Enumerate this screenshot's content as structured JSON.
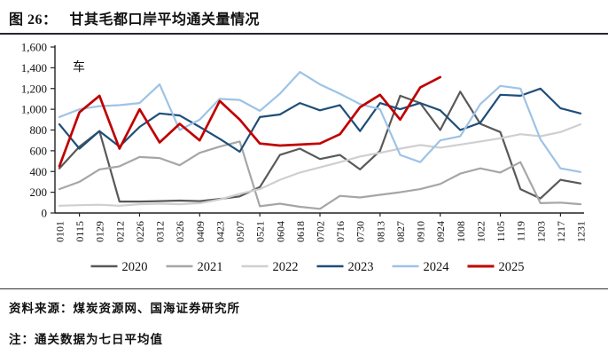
{
  "figure": {
    "label": "图 26：",
    "title": "甘其毛都口岸平均通关量情况"
  },
  "chart_data": {
    "type": "line",
    "title": "甘其毛都口岸平均通关量情况",
    "unit_label": "车",
    "xlabel": "",
    "ylabel": "",
    "ylim": [
      0,
      1600
    ],
    "y_ticks": [
      0,
      200,
      400,
      600,
      800,
      1000,
      1200,
      1400,
      1600
    ],
    "grid": false,
    "legend_position": "bottom",
    "x_tick_labels": [
      "0101",
      "0115",
      "0129",
      "0212",
      "0226",
      "0312",
      "0326",
      "0409",
      "0423",
      "0507",
      "0521",
      "0604",
      "0618",
      "0702",
      "0716",
      "0730",
      "0813",
      "0827",
      "0910",
      "0924",
      "1008",
      "1022",
      "1105",
      "1119",
      "1203",
      "1217",
      "1231"
    ],
    "series": [
      {
        "name": "2020",
        "color": "#595959",
        "width": 2.2,
        "values": [
          430,
          640,
          790,
          110,
          110,
          115,
          120,
          115,
          135,
          160,
          250,
          560,
          620,
          520,
          560,
          420,
          600,
          1130,
          1060,
          800,
          1170,
          860,
          780,
          230,
          140,
          320,
          285
        ]
      },
      {
        "name": "2021",
        "color": "#a6a6a6",
        "width": 2.2,
        "values": [
          230,
          300,
          420,
          450,
          540,
          530,
          460,
          580,
          640,
          690,
          65,
          90,
          60,
          40,
          165,
          150,
          175,
          200,
          230,
          280,
          380,
          430,
          390,
          490,
          95,
          100,
          85
        ]
      },
      {
        "name": "2022",
        "color": "#cfcfcf",
        "width": 2.2,
        "values": [
          70,
          75,
          80,
          70,
          85,
          90,
          85,
          95,
          130,
          185,
          230,
          320,
          390,
          440,
          490,
          545,
          580,
          620,
          655,
          630,
          660,
          690,
          720,
          760,
          740,
          780,
          855
        ]
      },
      {
        "name": "2023",
        "color": "#1f4e79",
        "width": 2.2,
        "values": [
          855,
          620,
          790,
          640,
          830,
          960,
          940,
          830,
          715,
          590,
          925,
          950,
          1060,
          990,
          1040,
          790,
          1060,
          1000,
          1060,
          990,
          800,
          870,
          1140,
          1130,
          1200,
          1010,
          960
        ]
      },
      {
        "name": "2024",
        "color": "#9dc3e6",
        "width": 2.2,
        "values": [
          925,
          1000,
          1030,
          1040,
          1060,
          1240,
          800,
          900,
          1100,
          1090,
          985,
          1150,
          1360,
          1240,
          1150,
          1050,
          1000,
          560,
          490,
          700,
          740,
          1050,
          1225,
          1200,
          710,
          430,
          395
        ]
      },
      {
        "name": "2025",
        "color": "#c00000",
        "width": 2.7,
        "values": [
          450,
          970,
          1130,
          620,
          1000,
          680,
          860,
          700,
          1080,
          900,
          670,
          650,
          660,
          670,
          760,
          1020,
          1140,
          900,
          1210,
          1310,
          null,
          null,
          null,
          null,
          null,
          null,
          null
        ]
      }
    ]
  },
  "footer": {
    "source": "资料来源：煤炭资源网、国海证券研究所",
    "note": "注：通关数据为七日平均值"
  }
}
